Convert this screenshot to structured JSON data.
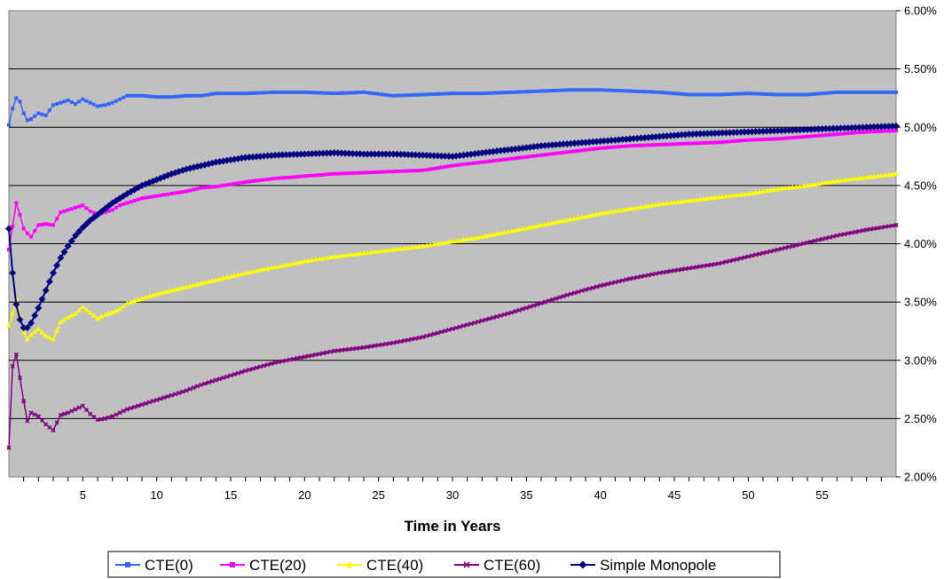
{
  "chart_data": {
    "type": "line",
    "title": "",
    "xlabel": "Time in Years",
    "ylabel": "",
    "x_range": [
      0,
      60
    ],
    "xlim": [
      0,
      60
    ],
    "ylim": [
      0.02,
      0.06
    ],
    "x_ticks": [
      5,
      10,
      15,
      20,
      25,
      30,
      35,
      40,
      45,
      50,
      55
    ],
    "y_ticks": [
      0.02,
      0.025,
      0.03,
      0.035,
      0.04,
      0.045,
      0.05,
      0.055,
      0.06
    ],
    "y_tick_labels": [
      "2.00%",
      "2.50%",
      "3.00%",
      "3.50%",
      "4.00%",
      "4.50%",
      "5.00%",
      "5.50%",
      "6.00%"
    ],
    "y_axis_side": "right",
    "grid": "horizontal",
    "plot_background": "#c0c0c0",
    "legend_position": "bottom",
    "series": [
      {
        "name": "CTE(0)",
        "color": "#3366ff",
        "marker": "square",
        "x": [
          0,
          0.25,
          0.5,
          0.75,
          1,
          1.25,
          1.5,
          2,
          2.5,
          3,
          3.5,
          4,
          4.5,
          5,
          5.5,
          6,
          6.5,
          7,
          7.5,
          8,
          9,
          10,
          11,
          12,
          13,
          14,
          15,
          16,
          18,
          20,
          22,
          24,
          26,
          28,
          30,
          32,
          34,
          36,
          38,
          40,
          42,
          44,
          46,
          48,
          50,
          52,
          54,
          56,
          58,
          60
        ],
        "values": [
          0.0502,
          0.0516,
          0.0525,
          0.0522,
          0.0512,
          0.0506,
          0.0507,
          0.0512,
          0.051,
          0.0519,
          0.0521,
          0.0523,
          0.052,
          0.0524,
          0.0521,
          0.0518,
          0.0519,
          0.0521,
          0.0524,
          0.0527,
          0.0527,
          0.0526,
          0.0526,
          0.0527,
          0.0527,
          0.0529,
          0.0529,
          0.0529,
          0.053,
          0.053,
          0.0529,
          0.053,
          0.0527,
          0.0528,
          0.0529,
          0.0529,
          0.053,
          0.0531,
          0.0532,
          0.0532,
          0.0531,
          0.053,
          0.0528,
          0.0528,
          0.0529,
          0.0528,
          0.0528,
          0.053,
          0.053,
          0.053
        ]
      },
      {
        "name": "CTE(20)",
        "color": "#ff00ff",
        "marker": "square",
        "x": [
          0,
          0.25,
          0.5,
          0.75,
          1,
          1.25,
          1.5,
          2,
          2.5,
          3,
          3.5,
          4,
          4.5,
          5,
          5.5,
          6,
          6.5,
          7,
          7.5,
          8,
          9,
          10,
          11,
          12,
          13,
          14,
          15,
          16,
          18,
          20,
          22,
          24,
          26,
          28,
          30,
          32,
          34,
          36,
          38,
          40,
          42,
          44,
          46,
          48,
          50,
          52,
          54,
          56,
          58,
          60
        ],
        "values": [
          0.0395,
          0.0415,
          0.0435,
          0.0425,
          0.0413,
          0.0409,
          0.0406,
          0.0416,
          0.0417,
          0.0416,
          0.0427,
          0.0429,
          0.0431,
          0.0433,
          0.0428,
          0.0425,
          0.0427,
          0.0429,
          0.0433,
          0.0435,
          0.0439,
          0.0441,
          0.0443,
          0.0445,
          0.0448,
          0.0449,
          0.0451,
          0.0453,
          0.0456,
          0.0458,
          0.046,
          0.0461,
          0.0462,
          0.0463,
          0.0467,
          0.047,
          0.0473,
          0.0476,
          0.0479,
          0.0482,
          0.0484,
          0.0485,
          0.0486,
          0.0487,
          0.0489,
          0.049,
          0.0492,
          0.0494,
          0.0496,
          0.0497
        ]
      },
      {
        "name": "CTE(40)",
        "color": "#ffff00",
        "marker": "triangle",
        "x": [
          0,
          0.25,
          0.5,
          0.75,
          1,
          1.25,
          1.5,
          2,
          2.5,
          3,
          3.5,
          4,
          4.5,
          5,
          5.5,
          6,
          6.5,
          7,
          7.5,
          8,
          9,
          10,
          11,
          12,
          13,
          14,
          15,
          16,
          18,
          20,
          22,
          24,
          26,
          28,
          30,
          32,
          34,
          36,
          38,
          40,
          42,
          44,
          46,
          48,
          50,
          52,
          54,
          56,
          58,
          60
        ],
        "values": [
          0.033,
          0.034,
          0.0353,
          0.0338,
          0.0324,
          0.0318,
          0.0322,
          0.0327,
          0.0321,
          0.0318,
          0.0333,
          0.0337,
          0.034,
          0.0346,
          0.0341,
          0.0336,
          0.0339,
          0.0341,
          0.0344,
          0.0349,
          0.0353,
          0.0357,
          0.036,
          0.0363,
          0.0366,
          0.0369,
          0.0372,
          0.0375,
          0.038,
          0.0385,
          0.0389,
          0.0392,
          0.0395,
          0.0398,
          0.0402,
          0.0406,
          0.0411,
          0.0416,
          0.0421,
          0.0426,
          0.043,
          0.0434,
          0.0437,
          0.044,
          0.0443,
          0.0447,
          0.045,
          0.0454,
          0.0457,
          0.046
        ]
      },
      {
        "name": "CTE(60)",
        "color": "#800080",
        "marker": "x",
        "x": [
          0,
          0.25,
          0.5,
          0.75,
          1,
          1.25,
          1.5,
          2,
          2.5,
          3,
          3.5,
          4,
          4.5,
          5,
          5.5,
          6,
          6.5,
          7,
          7.5,
          8,
          9,
          10,
          11,
          12,
          13,
          14,
          15,
          16,
          18,
          20,
          22,
          24,
          26,
          28,
          30,
          32,
          34,
          36,
          38,
          40,
          42,
          44,
          46,
          48,
          50,
          52,
          54,
          56,
          58,
          60
        ],
        "values": [
          0.0225,
          0.0295,
          0.0305,
          0.0285,
          0.0265,
          0.0248,
          0.0255,
          0.0252,
          0.0245,
          0.024,
          0.0253,
          0.0255,
          0.0258,
          0.0261,
          0.0254,
          0.0249,
          0.025,
          0.0252,
          0.0255,
          0.0258,
          0.0262,
          0.0266,
          0.027,
          0.0274,
          0.0279,
          0.0283,
          0.0287,
          0.0291,
          0.0298,
          0.0303,
          0.0308,
          0.0311,
          0.0315,
          0.032,
          0.0327,
          0.0334,
          0.0341,
          0.0349,
          0.0357,
          0.0364,
          0.037,
          0.0375,
          0.0379,
          0.0383,
          0.0389,
          0.0395,
          0.0401,
          0.0407,
          0.0412,
          0.0416
        ]
      },
      {
        "name": "Simple Monopole",
        "color": "#000080",
        "marker": "diamond",
        "x": [
          0,
          0.25,
          0.5,
          0.75,
          1,
          1.25,
          1.5,
          2,
          2.5,
          3,
          3.5,
          4,
          4.5,
          5,
          5.5,
          6,
          6.5,
          7,
          7.5,
          8,
          9,
          10,
          11,
          12,
          13,
          14,
          15,
          16,
          18,
          20,
          22,
          24,
          26,
          28,
          30,
          32,
          34,
          36,
          38,
          40,
          42,
          44,
          46,
          48,
          50,
          52,
          54,
          56,
          58,
          60
        ],
        "values": [
          0.0413,
          0.0375,
          0.0348,
          0.0335,
          0.0328,
          0.0328,
          0.0332,
          0.0345,
          0.036,
          0.0375,
          0.0388,
          0.0398,
          0.0407,
          0.0414,
          0.042,
          0.0425,
          0.043,
          0.0435,
          0.0439,
          0.0443,
          0.045,
          0.0455,
          0.046,
          0.0464,
          0.0467,
          0.047,
          0.0472,
          0.0474,
          0.0476,
          0.0477,
          0.0478,
          0.0477,
          0.0477,
          0.0476,
          0.0475,
          0.0478,
          0.0481,
          0.0484,
          0.0486,
          0.0488,
          0.049,
          0.0492,
          0.0494,
          0.0495,
          0.0496,
          0.0497,
          0.0498,
          0.0499,
          0.05,
          0.0501
        ]
      }
    ]
  }
}
